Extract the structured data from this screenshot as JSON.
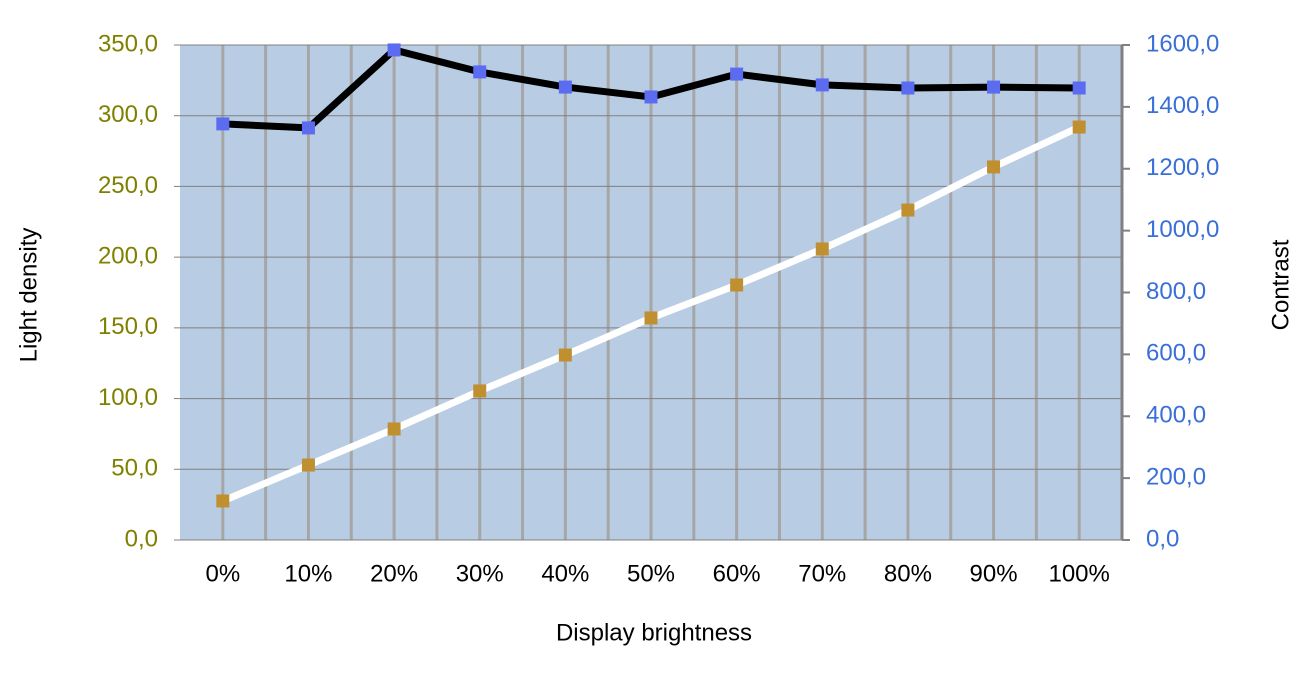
{
  "chart_data": {
    "type": "line",
    "xlabel": "Display brightness",
    "ylabel": "Light density",
    "y2label": "Contrast",
    "categories": [
      "0%",
      "10%",
      "20%",
      "30%",
      "40%",
      "50%",
      "60%",
      "70%",
      "80%",
      "90%",
      "100%"
    ],
    "series": [
      {
        "color": "#c09030",
        "line_color": "#ffffff",
        "axis": "y",
        "values": [
          27.6,
          53.0,
          78.5,
          105.4,
          130.8,
          157.0,
          180.3,
          205.8,
          233.3,
          263.8,
          292.0
        ]
      },
      {
        "color": "#5b6cf0",
        "line_color": "#000000",
        "axis": "y2",
        "values": [
          1345,
          1332,
          1584,
          1513,
          1464,
          1432,
          1506,
          1471,
          1461,
          1464,
          1461
        ]
      }
    ],
    "ylim": [
      0,
      350
    ],
    "yticks": [
      {
        "value": 0,
        "label": "0,0"
      },
      {
        "value": 50,
        "label": "50,0"
      },
      {
        "value": 100,
        "label": "100,0"
      },
      {
        "value": 150,
        "label": "150,0"
      },
      {
        "value": 200,
        "label": "200,0"
      },
      {
        "value": 250,
        "label": "250,0"
      },
      {
        "value": 300,
        "label": "300,0"
      },
      {
        "value": 350,
        "label": "350,0"
      }
    ],
    "y2lim": [
      0,
      1600
    ],
    "y2ticks": [
      {
        "value": 0,
        "label": "0,0"
      },
      {
        "value": 200,
        "label": "200,0"
      },
      {
        "value": 400,
        "label": "400,0"
      },
      {
        "value": 600,
        "label": "600,0"
      },
      {
        "value": 800,
        "label": "800,0"
      },
      {
        "value": 1000,
        "label": "1000,0"
      },
      {
        "value": 1200,
        "label": "1200,0"
      },
      {
        "value": 1400,
        "label": "1400,0"
      },
      {
        "value": 1600,
        "label": "1600,0"
      }
    ],
    "ytick_color": "#7f7f00",
    "y2tick_color": "#3a6fd8",
    "plot_background": "#b8cce4",
    "grid": true
  }
}
